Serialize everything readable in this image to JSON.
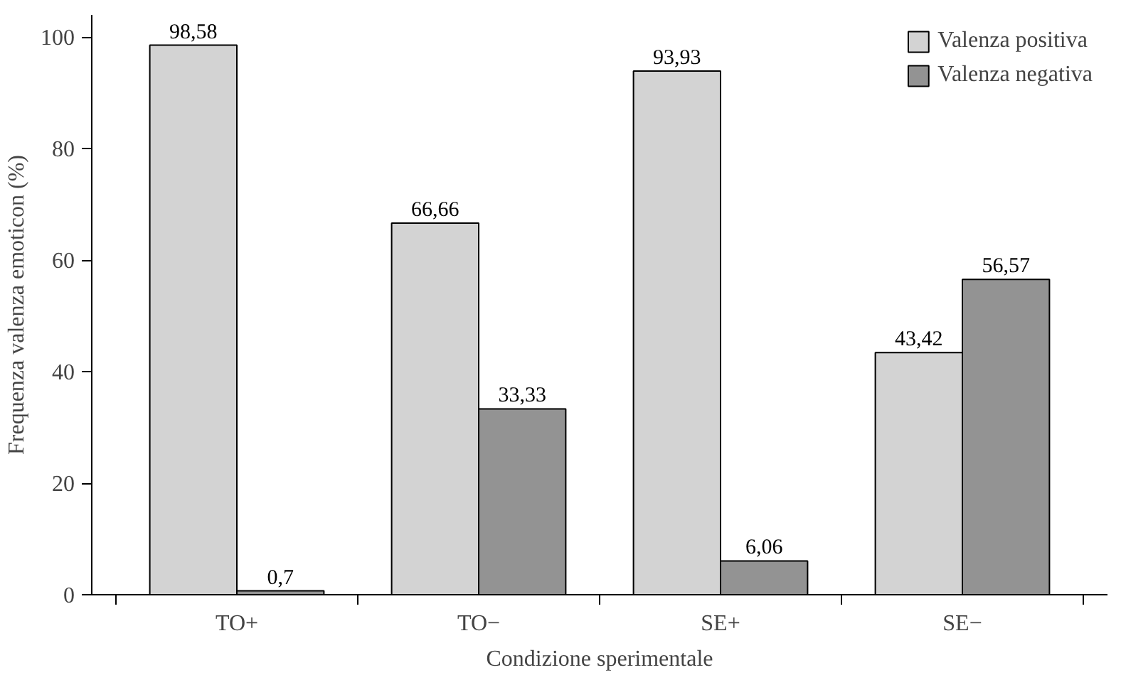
{
  "chart_data": {
    "type": "bar",
    "xlabel": "Condizione sperimentale",
    "ylabel": "Frequenza valenza emoticon (%)",
    "categories": [
      "TO+",
      "TO−",
      "SE+",
      "SE−"
    ],
    "series": [
      {
        "name": "Valenza positiva",
        "color": "#d3d3d3",
        "values": [
          98.58,
          66.66,
          93.93,
          43.42
        ],
        "value_labels": [
          "98,58",
          "66,66",
          "93,93",
          "43,42"
        ]
      },
      {
        "name": "Valenza negativa",
        "color": "#939393",
        "values": [
          0.7,
          33.33,
          6.06,
          56.57
        ],
        "value_labels": [
          "0,7",
          "33,33",
          "6,06",
          "56,57"
        ]
      }
    ],
    "ylim": [
      0,
      104
    ],
    "yticks": [
      0,
      20,
      40,
      60,
      80,
      100
    ],
    "grid": false,
    "legend": "top right"
  }
}
